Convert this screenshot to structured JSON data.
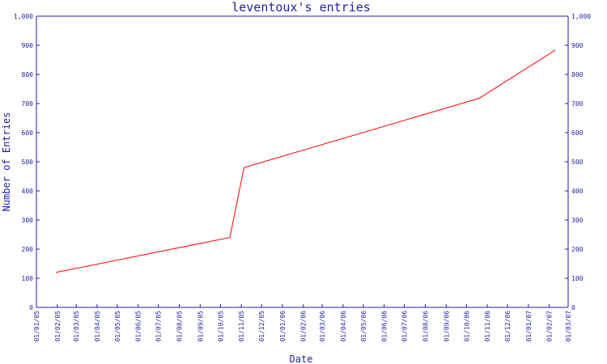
{
  "chart_data": {
    "type": "line",
    "title": "leventoux's entries",
    "xlabel": "Date",
    "ylabel": "Number of Entries",
    "ylim": [
      0,
      1000
    ],
    "y_ticks": [
      "0",
      "100",
      "200",
      "300",
      "400",
      "500",
      "600",
      "700",
      "800",
      "900",
      "1,000"
    ],
    "x_ticks": [
      "01/01/05",
      "01/02/05",
      "01/03/05",
      "01/04/05",
      "01/05/05",
      "01/06/05",
      "01/07/05",
      "01/08/05",
      "01/09/05",
      "01/10/05",
      "01/11/05",
      "01/12/05",
      "01/01/06",
      "01/02/06",
      "01/03/06",
      "01/04/06",
      "01/05/06",
      "01/06/06",
      "01/07/06",
      "01/08/06",
      "01/09/06",
      "01/10/06",
      "01/11/06",
      "01/12/06",
      "01/01/07",
      "01/02/07",
      "01/03/07"
    ],
    "series": [
      {
        "color": "#ff0000",
        "points": [
          {
            "x": "2005-01-30",
            "y": 120
          },
          {
            "x": "2005-10-15",
            "y": 240
          },
          {
            "x": "2005-11-05",
            "y": 480
          },
          {
            "x": "2006-10-20",
            "y": 718
          },
          {
            "x": "2007-02-10",
            "y": 884
          }
        ]
      }
    ],
    "right_axis": true,
    "grid": false
  },
  "colors": {
    "axis": "#1f1fa0",
    "text": "#1f1fa0",
    "line": "#ff0000",
    "background": "#ffffff"
  }
}
